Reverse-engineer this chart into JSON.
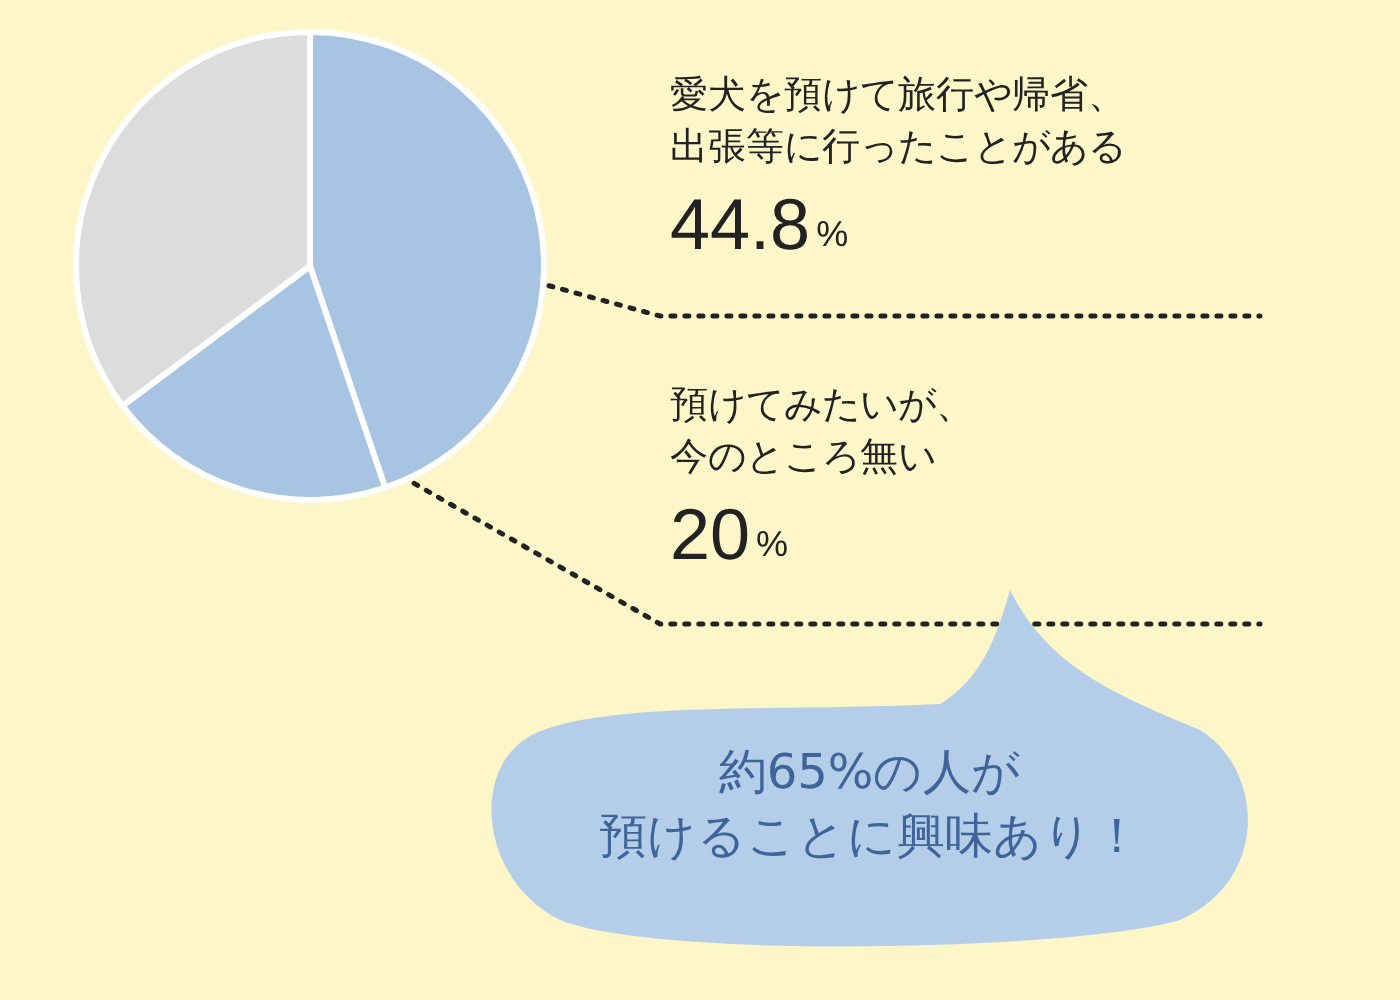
{
  "chart_data": {
    "type": "pie",
    "categories": [
      "愛犬を預けて旅行や帰省、出張等に行ったことがある",
      "預けてみたいが、今のところ無い",
      null
    ],
    "values": [
      44.8,
      20,
      35.2
    ],
    "value_labels": [
      "44.8%",
      "20%",
      null
    ],
    "colors": [
      "#a7c4e2",
      "#a7c4e2",
      "#dcdcdc"
    ],
    "annotations": [
      "約65%の人が",
      "預けることに興味あり！"
    ]
  }
}
